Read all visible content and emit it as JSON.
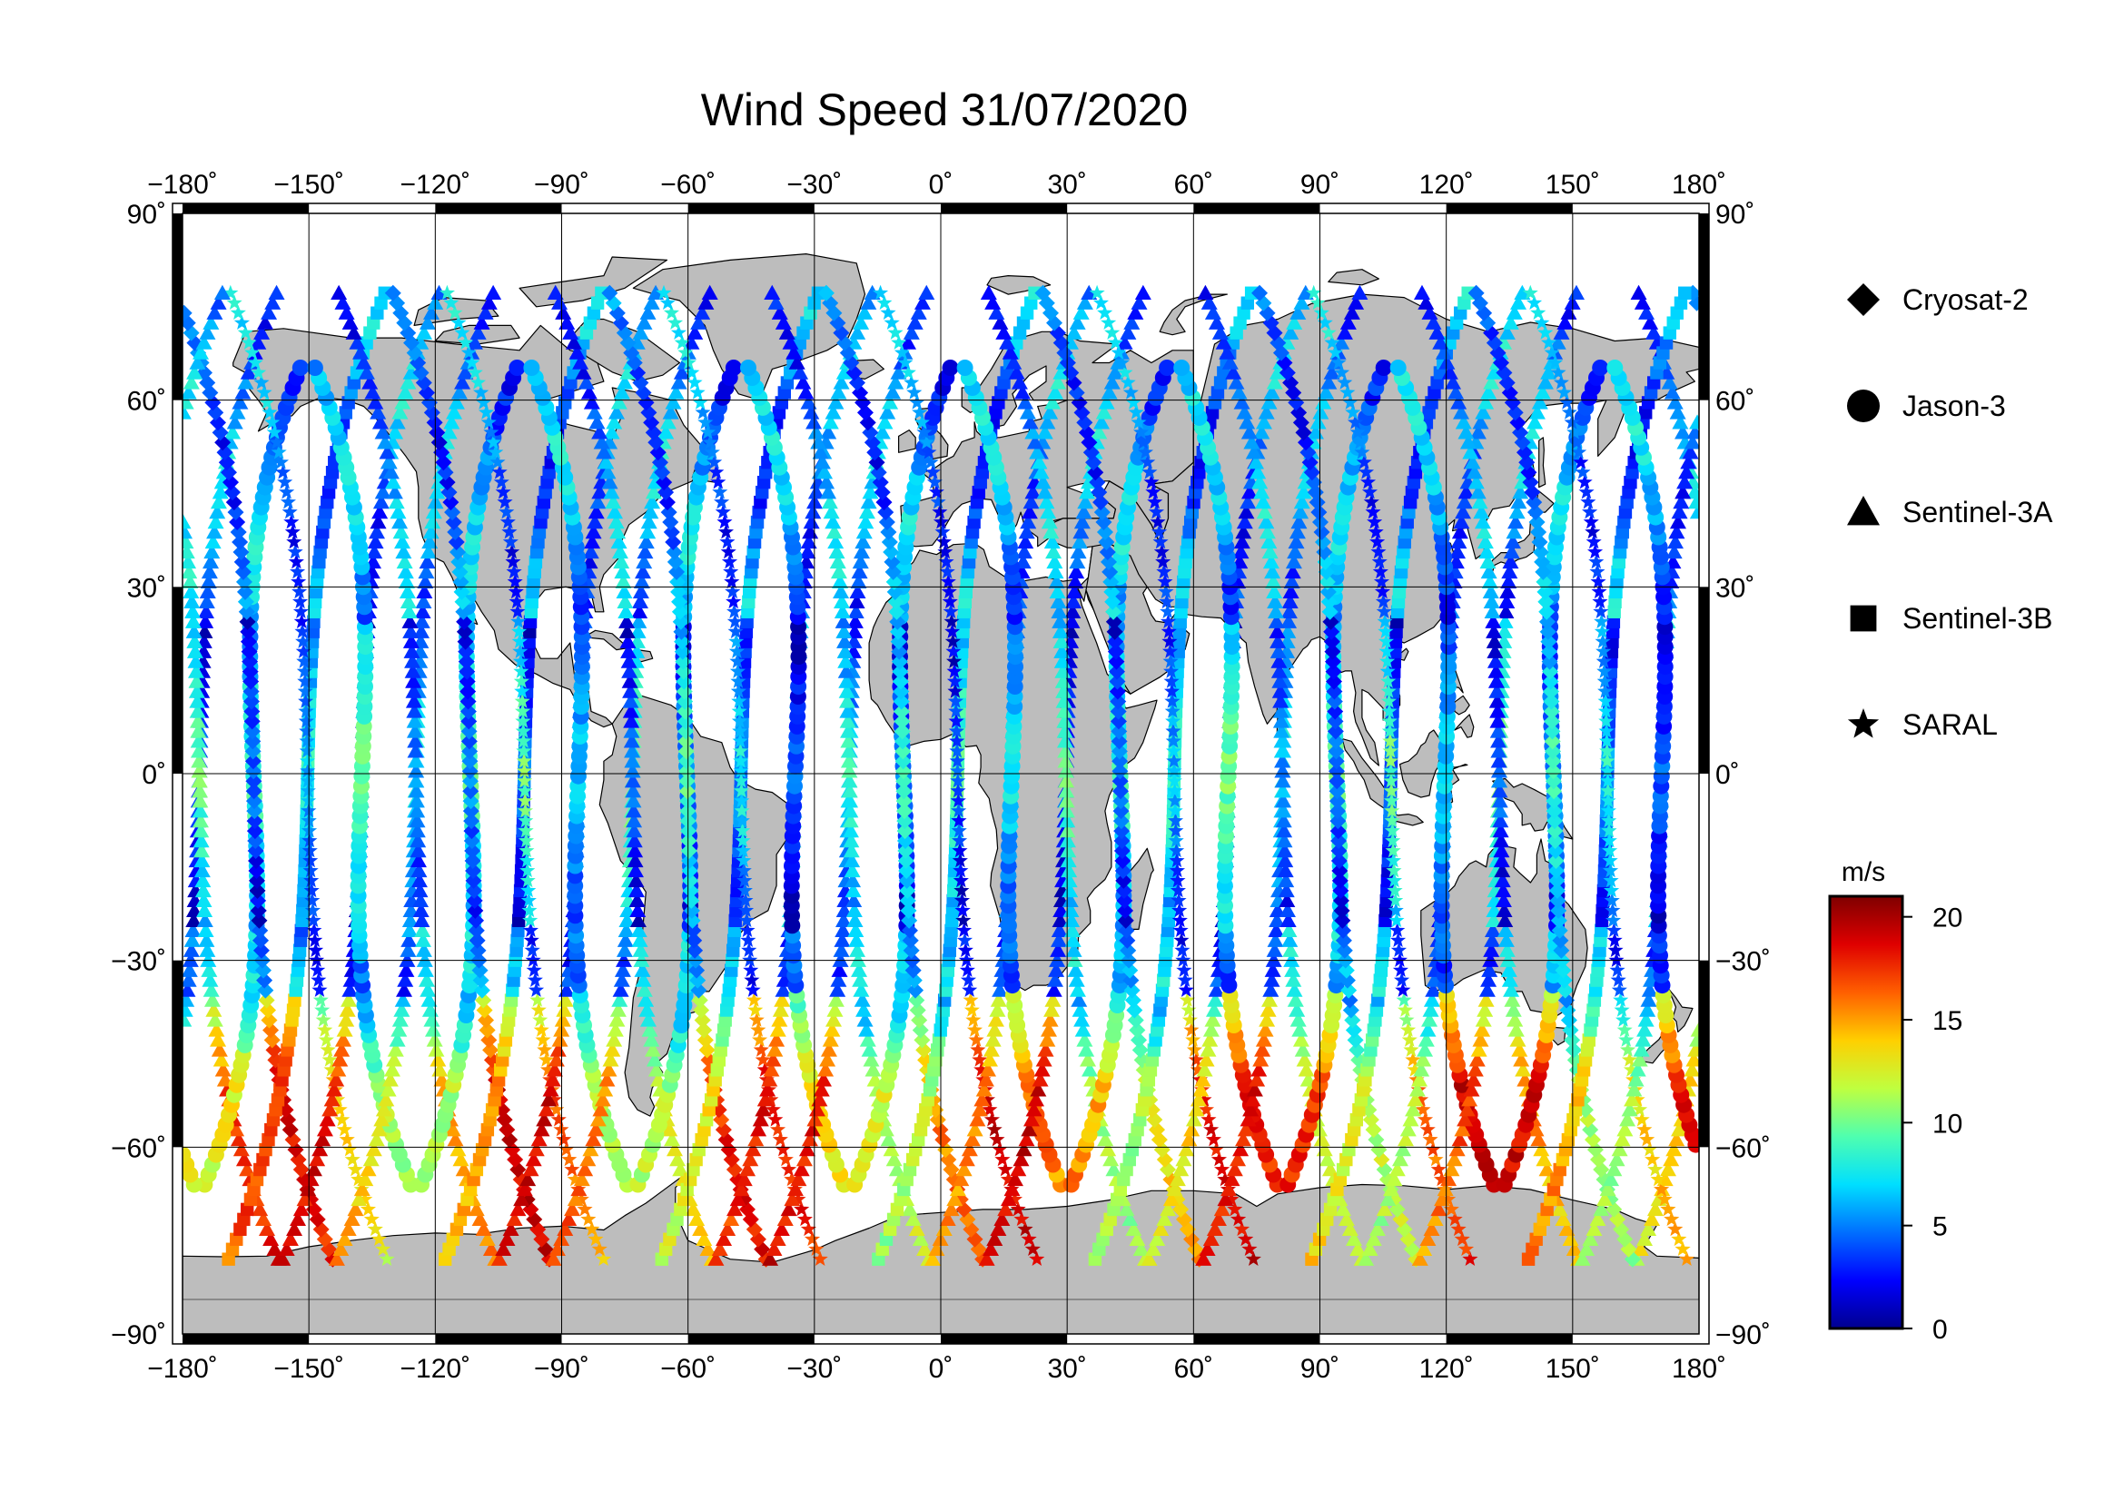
{
  "title": "Wind Speed 31/07/2020",
  "colors": {
    "land": "#bdbdbd",
    "ocean": "#ffffff",
    "frame": "#000000",
    "grid": "#000000"
  },
  "axes": {
    "lon_ticks": [
      "−180˚",
      "−150˚",
      "−120˚",
      "−90˚",
      "−60˚",
      "−30˚",
      "0˚",
      "30˚",
      "60˚",
      "90˚",
      "120˚",
      "150˚",
      "180˚"
    ],
    "lat_ticks_left": [
      "90˚",
      "60˚",
      "30˚",
      "0˚",
      "−30˚",
      "−60˚",
      "−90˚"
    ],
    "lat_ticks_right": [
      "90˚",
      "60˚",
      "30˚",
      "0˚",
      "−30˚",
      "−60˚",
      "−90˚"
    ]
  },
  "legend": {
    "items": [
      {
        "label": "Cryosat-2",
        "symbol": "diamond"
      },
      {
        "label": "Jason-3",
        "symbol": "circle"
      },
      {
        "label": "Sentinel-3A",
        "symbol": "triangle"
      },
      {
        "label": "Sentinel-3B",
        "symbol": "square"
      },
      {
        "label": "SARAL",
        "symbol": "star"
      }
    ]
  },
  "colorbar": {
    "unit": "m/s",
    "min": 0,
    "max": 21,
    "ticks": [
      "20",
      "15",
      "10",
      "5",
      "0"
    ],
    "palette": [
      "#00008f",
      "#0000ff",
      "#006fff",
      "#00dfff",
      "#4fffaf",
      "#bfff3f",
      "#ffcf00",
      "#ff5f00",
      "#df0000",
      "#7f0000"
    ]
  },
  "chart_data": {
    "type": "scatter",
    "title": "Wind Speed 31/07/2020",
    "xlim": [
      -180,
      180
    ],
    "ylim": [
      -90,
      90
    ],
    "value_range": [
      0,
      21
    ],
    "value_unit": "m/s",
    "series": [
      {
        "name": "Cryosat-2",
        "symbol": "diamond"
      },
      {
        "name": "Jason-3",
        "symbol": "circle"
      },
      {
        "name": "Sentinel-3A",
        "symbol": "triangle"
      },
      {
        "name": "Sentinel-3B",
        "symbol": "square"
      },
      {
        "name": "SARAL",
        "symbol": "star"
      }
    ]
  }
}
